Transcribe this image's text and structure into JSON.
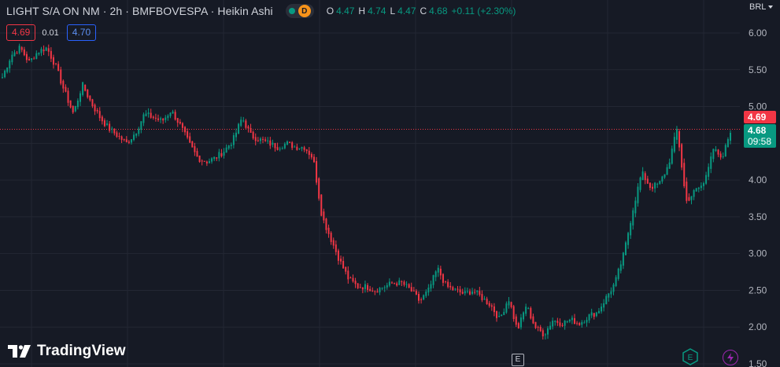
{
  "header": {
    "title": "LIGHT S/A ON NM · 2h · BMFBOVESPA · Heikin Ashi",
    "interval_badge": "D",
    "ohlc": {
      "o_label": "O",
      "o_value": "4.47",
      "h_label": "H",
      "h_value": "4.74",
      "l_label": "L",
      "l_value": "4.47",
      "c_label": "C",
      "c_value": "4.68",
      "change": "+0.11 (+2.30%)"
    }
  },
  "trade": {
    "sell_price": "4.69",
    "spread": "0.01",
    "buy_price": "4.70"
  },
  "currency": "BRL",
  "price_tags": {
    "ask_price": "4.69",
    "last_price": "4.68",
    "countdown": "09:58"
  },
  "branding": {
    "logo_text": "TradingView"
  },
  "events": {
    "event_1": "E",
    "event_2": "E"
  },
  "colors": {
    "background": "#161a25",
    "up": "#089981",
    "down": "#f23645",
    "grid": "#232733",
    "text": "#b2b5be"
  },
  "chart_data": {
    "type": "candlestick",
    "style": "Heikin Ashi",
    "ylim": [
      1.5,
      6.1
    ],
    "y_ticks": [
      "6.00",
      "5.50",
      "5.00",
      "4.50",
      "4.00",
      "3.50",
      "3.00",
      "2.50",
      "2.00",
      "1.50"
    ],
    "grid": true,
    "price_line": 4.69,
    "series": [
      {
        "name": "LIGHT S/A ON NM",
        "close_path": [
          5.4,
          5.7,
          5.8,
          5.6,
          5.75,
          5.8,
          5.55,
          5.2,
          4.9,
          5.3,
          5.05,
          4.85,
          4.7,
          4.6,
          4.5,
          4.65,
          4.9,
          4.85,
          4.8,
          4.95,
          4.75,
          4.5,
          4.3,
          4.25,
          4.3,
          4.4,
          4.55,
          4.85,
          4.6,
          4.55,
          4.5,
          4.45,
          4.5,
          4.45,
          4.45,
          4.3,
          3.5,
          3.2,
          2.9,
          2.65,
          2.55,
          2.55,
          2.5,
          2.55,
          2.6,
          2.6,
          2.5,
          2.35,
          2.5,
          2.8,
          2.55,
          2.5,
          2.45,
          2.5,
          2.4,
          2.3,
          2.1,
          2.4,
          1.95,
          2.3,
          2.0,
          1.9,
          2.1,
          2.05,
          2.1,
          2.05,
          2.15,
          2.2,
          2.4,
          2.6,
          3.0,
          3.6,
          4.1,
          3.9,
          3.95,
          4.2,
          4.7,
          3.7,
          3.85,
          3.95,
          4.45,
          4.25,
          4.68
        ]
      }
    ]
  }
}
